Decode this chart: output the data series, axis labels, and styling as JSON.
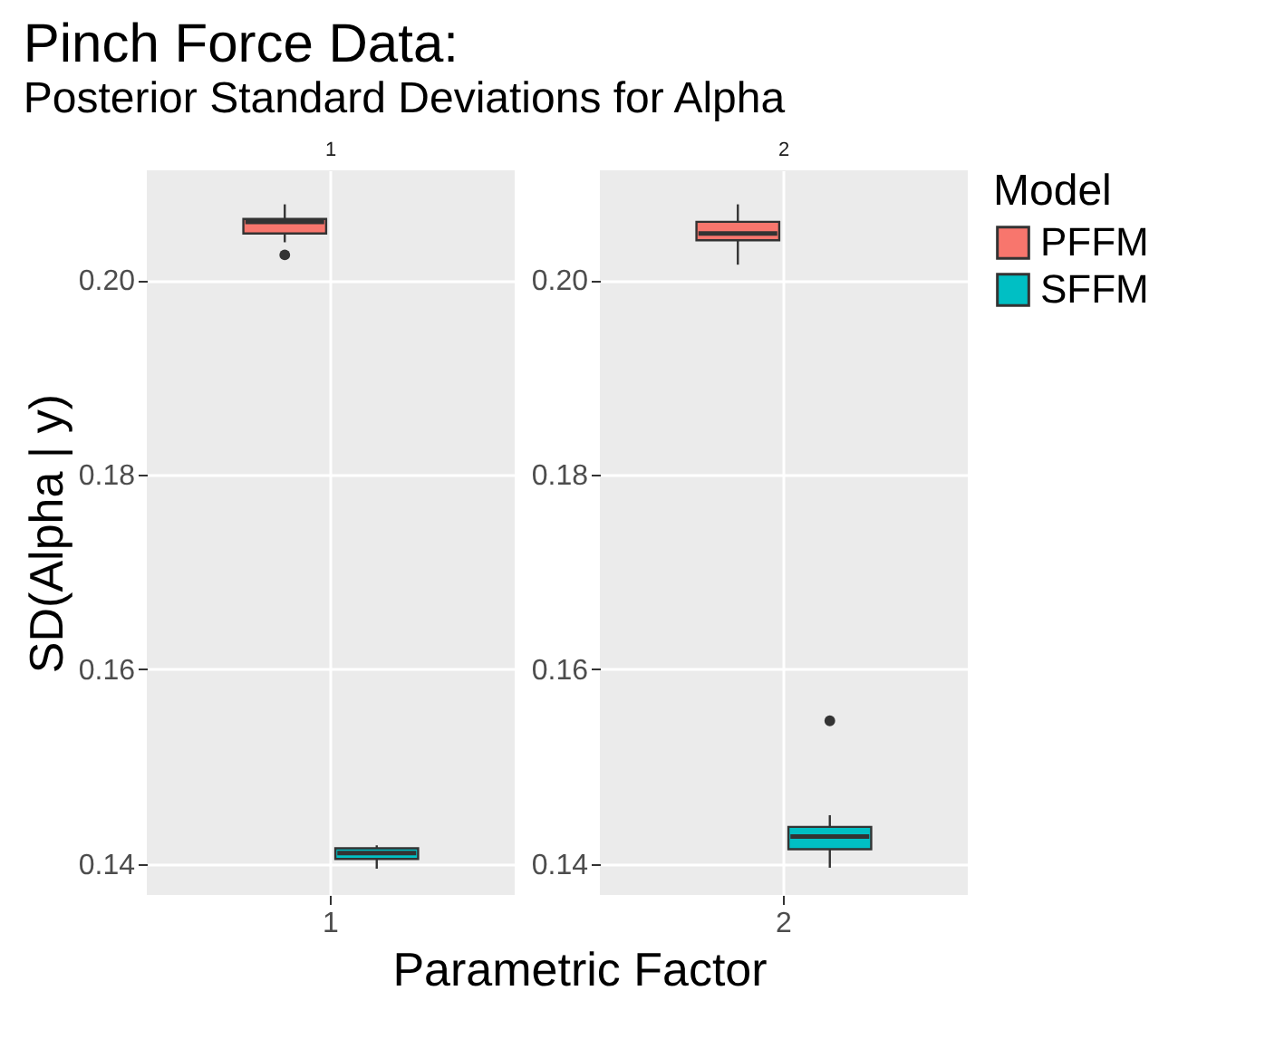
{
  "chart_data": [
    {
      "type": "box",
      "title": "Pinch Force Data:",
      "subtitle": "Posterior Standard Deviations for Alpha",
      "ylabel": "SD(Alpha | y)",
      "xlabel": "Parametric Factor",
      "annotations": [
        "1"
      ],
      "categories": [
        "1"
      ],
      "ylim": [
        0.1368,
        0.2113
      ],
      "yticks": [
        0.14,
        0.16,
        0.18,
        {
          "value": 0.2,
          "label": "0.20"
        }
      ],
      "grid": true,
      "legend": "right",
      "legend_title": "Model",
      "series": [
        {
          "name": "PFFM",
          "color": "#f8766d",
          "boxes": [
            {
              "low": 0.2039,
              "q1": 0.2048,
              "median": 0.206,
              "q3": 0.2063,
              "high": 0.2078,
              "outliers": [
                0.2026
              ]
            }
          ]
        },
        {
          "name": "SFFM",
          "color": "#00bfc4",
          "boxes": [
            {
              "low": 0.1395,
              "q1": 0.1405,
              "median": 0.1411,
              "q3": 0.1416,
              "high": 0.1419
            }
          ]
        }
      ]
    },
    {
      "type": "box",
      "annotations": [
        "2"
      ],
      "categories": [
        "2"
      ],
      "ylim": [
        0.1368,
        0.2113
      ],
      "yticks": [
        0.14,
        0.16,
        0.18,
        {
          "value": 0.2,
          "label": "0.20"
        }
      ],
      "grid": true,
      "legend": "right",
      "series": [
        {
          "name": "PFFM",
          "color": "#f8766d",
          "boxes": [
            {
              "low": 0.2016,
              "q1": 0.2041,
              "median": 0.2048,
              "q3": 0.206,
              "high": 0.2078
            }
          ]
        },
        {
          "name": "SFFM",
          "color": "#00bfc4",
          "boxes": [
            {
              "low": 0.1396,
              "q1": 0.1415,
              "median": 0.1428,
              "q3": 0.1438,
              "high": 0.145,
              "outliers": [
                0.1547
              ]
            }
          ]
        }
      ]
    }
  ]
}
